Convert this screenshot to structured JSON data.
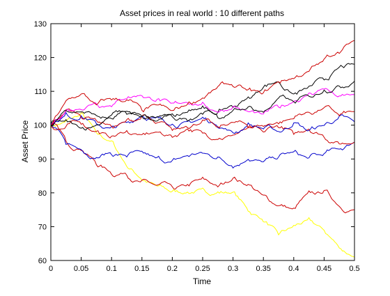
{
  "chart_data": {
    "type": "line",
    "title": "Asset prices in real world : 10 different paths",
    "xlabel": "Time",
    "ylabel": "Asset Price",
    "xlim": [
      0,
      0.5
    ],
    "ylim": [
      60,
      130
    ],
    "grid": false,
    "xticks": [
      "0",
      "0.05",
      "0.1",
      "0.15",
      "0.2",
      "0.25",
      "0.3",
      "0.35",
      "0.4",
      "0.45",
      "0.5"
    ],
    "yticks": [
      "60",
      "70",
      "80",
      "90",
      "100",
      "110",
      "120",
      "130"
    ],
    "x": [
      0,
      0.025,
      0.05,
      0.075,
      0.1,
      0.125,
      0.15,
      0.175,
      0.2,
      0.225,
      0.25,
      0.275,
      0.3,
      0.325,
      0.35,
      0.375,
      0.4,
      0.425,
      0.45,
      0.475,
      0.5
    ],
    "series": [
      {
        "color": "#ffff00",
        "values": [
          100,
          101,
          103,
          98,
          95,
          88,
          84,
          82,
          80,
          80,
          81,
          80,
          80,
          75,
          72,
          68,
          70,
          72,
          69,
          64,
          61
        ]
      },
      {
        "color": "#cc0000",
        "values": [
          100,
          96,
          93,
          89,
          86,
          86,
          83,
          82,
          82,
          82,
          84,
          82,
          84,
          82,
          79,
          76,
          75,
          80,
          80,
          76,
          75
        ]
      },
      {
        "color": "#0000cc",
        "values": [
          100,
          95,
          93,
          90,
          92,
          91,
          92,
          90,
          89,
          91,
          92,
          90,
          88,
          90,
          89,
          90,
          92,
          90,
          91,
          93,
          95
        ]
      },
      {
        "color": "#cc0000",
        "values": [
          100,
          99,
          101,
          98,
          96,
          98,
          97,
          98,
          97,
          99,
          98,
          96,
          97,
          99,
          98,
          100,
          98,
          99,
          97,
          95,
          95
        ]
      },
      {
        "color": "#0000cc",
        "values": [
          100,
          103,
          102,
          101,
          99,
          101,
          103,
          102,
          100,
          101,
          102,
          100,
          98,
          100,
          99,
          98,
          100,
          98,
          100,
          102,
          101
        ]
      },
      {
        "color": "#cc0000",
        "values": [
          100,
          104,
          103,
          102,
          100,
          101,
          102,
          100,
          99,
          100,
          101,
          99,
          101,
          100,
          100,
          101,
          102,
          104,
          105,
          103,
          104
        ]
      },
      {
        "color": "#000000",
        "values": [
          100,
          101,
          99,
          100,
          103,
          104,
          102,
          101,
          103,
          102,
          104,
          103,
          106,
          108,
          111,
          113,
          109,
          111,
          114,
          117,
          118
        ]
      },
      {
        "color": "#ff00ff",
        "values": [
          100,
          104,
          105,
          107,
          106,
          108,
          109,
          107,
          106,
          107,
          106,
          104,
          105,
          104,
          103,
          106,
          107,
          109,
          111,
          108,
          109
        ]
      },
      {
        "color": "#cc0000",
        "values": [
          100,
          107,
          109,
          106,
          108,
          107,
          105,
          106,
          104,
          106,
          108,
          111,
          112,
          110,
          109,
          113,
          114,
          116,
          119,
          122,
          125
        ]
      },
      {
        "color": "#000000",
        "values": [
          100,
          105,
          104,
          103,
          102,
          104,
          103,
          102,
          103,
          104,
          105,
          103,
          104,
          105,
          104,
          108,
          107,
          109,
          110,
          112,
          113
        ]
      }
    ]
  }
}
